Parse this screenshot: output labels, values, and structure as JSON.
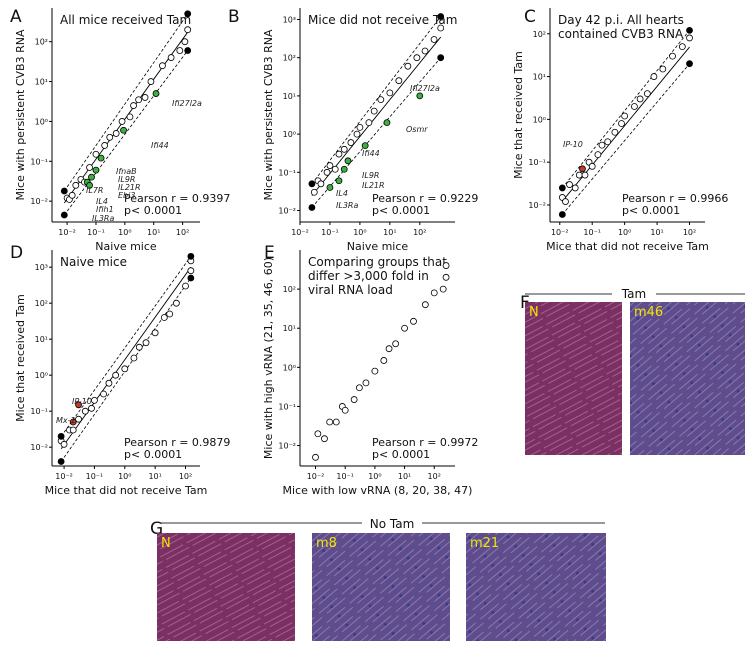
{
  "chart_data": [
    {
      "type": "scatter",
      "panel": "A",
      "title_lines": [
        "All mice received Tam"
      ],
      "xlabel": "Naive mice",
      "ylabel": "Mice with persistent CVB3 RNA",
      "xscale": "log",
      "yscale": "log",
      "xlim": [
        0.003,
        400
      ],
      "ylim": [
        0.003,
        700
      ],
      "xticks": [
        {
          "value": 0.01,
          "label": "10⁻²"
        },
        {
          "value": 0.1,
          "label": "10⁻¹"
        },
        {
          "value": 1,
          "label": "10⁰"
        },
        {
          "value": 10,
          "label": "10¹"
        },
        {
          "value": 100,
          "label": "10²"
        }
      ],
      "yticks": [
        {
          "value": 0.01,
          "label": "10⁻²"
        },
        {
          "value": 0.1,
          "label": "10⁻¹"
        },
        {
          "value": 1,
          "label": "10⁰"
        },
        {
          "value": 10,
          "label": "10¹"
        },
        {
          "value": 100,
          "label": "10²"
        }
      ],
      "series": [
        {
          "color": "#000000",
          "marker": "open",
          "x": [
            0.01,
            0.012,
            0.015,
            0.02,
            0.03,
            0.04,
            0.06,
            0.1,
            0.2,
            0.3,
            0.5,
            0.8,
            1.5,
            2,
            3,
            5,
            8,
            20,
            40,
            80,
            120,
            150
          ],
          "values": [
            0.012,
            0.011,
            0.014,
            0.025,
            0.035,
            0.03,
            0.07,
            0.15,
            0.25,
            0.4,
            0.5,
            1,
            1.3,
            2.5,
            3.5,
            4,
            10,
            25,
            40,
            60,
            100,
            200
          ]
        },
        {
          "color": "#000000",
          "marker": "filled",
          "x": [
            0.008,
            0.008,
            150,
            150
          ],
          "values": [
            0.018,
            0.0045,
            500,
            60
          ]
        },
        {
          "color": "#3cb043",
          "marker": "filled",
          "x": [
            12,
            0.9,
            0.15,
            0.1,
            0.07,
            0.05,
            0.06
          ],
          "values": [
            5,
            0.6,
            0.12,
            0.06,
            0.04,
            0.03,
            0.025
          ]
        }
      ],
      "annotations": [
        "Ifi27l2a",
        "Ifi44",
        "IfnaB",
        "IL9R",
        "IL21R",
        "Ebi3",
        "IL7R",
        "IL4",
        "Ifih1",
        "IL3Ra"
      ],
      "stats": [
        "Pearson r = 0.9397",
        "p< 0.0001"
      ]
    },
    {
      "type": "scatter",
      "panel": "B",
      "title_lines": [
        "Mice did not receive Tam"
      ],
      "xlabel": "Naive mice",
      "ylabel": "Mice with persistent CVB3 RNA",
      "xscale": "log",
      "yscale": "log",
      "xlim": [
        0.01,
        1500
      ],
      "ylim": [
        0.005,
        2000
      ],
      "xticks": [
        {
          "value": 0.01,
          "label": "10⁻²"
        },
        {
          "value": 0.1,
          "label": "10⁻¹"
        },
        {
          "value": 1,
          "label": "10⁰"
        },
        {
          "value": 10,
          "label": "10¹"
        },
        {
          "value": 100,
          "label": "10²"
        }
      ],
      "yticks": [
        {
          "value": 0.01,
          "label": "10⁻²"
        },
        {
          "value": 0.1,
          "label": "10⁻¹"
        },
        {
          "value": 1,
          "label": "10⁰"
        },
        {
          "value": 10,
          "label": "10¹"
        },
        {
          "value": 100,
          "label": "10²"
        },
        {
          "value": 1000,
          "label": "10³"
        }
      ],
      "series": [
        {
          "color": "#000000",
          "marker": "open",
          "x": [
            0.03,
            0.04,
            0.05,
            0.08,
            0.1,
            0.15,
            0.2,
            0.3,
            0.5,
            0.8,
            1,
            2,
            3,
            5,
            10,
            20,
            40,
            80,
            150,
            300,
            500
          ],
          "values": [
            0.03,
            0.06,
            0.05,
            0.1,
            0.15,
            0.12,
            0.3,
            0.4,
            0.6,
            1,
            1.5,
            2,
            4,
            8,
            12,
            25,
            60,
            100,
            150,
            300,
            600
          ]
        },
        {
          "color": "#000000",
          "marker": "filled",
          "x": [
            0.025,
            0.025,
            500,
            500
          ],
          "values": [
            0.05,
            0.012,
            1200,
            100
          ]
        },
        {
          "color": "#3cb043",
          "marker": "filled",
          "x": [
            100,
            8,
            1.5,
            0.4,
            0.3,
            0.2,
            0.1
          ],
          "values": [
            10,
            2,
            0.5,
            0.2,
            0.12,
            0.06,
            0.04
          ]
        }
      ],
      "annotations": [
        "Ifi27l2a",
        "Osmr",
        "Ifi44",
        "IL9R",
        "IL21R",
        "IL4",
        "IL3Ra"
      ],
      "stats": [
        "Pearson r = 0.9229",
        "p< 0.0001"
      ]
    },
    {
      "type": "scatter",
      "panel": "C",
      "title_lines": [
        "Day 42 p.i. All hearts",
        "contained CVB3 RNA"
      ],
      "xlabel": "Mice that did not receive Tam",
      "ylabel": "Mice that received Tam",
      "xscale": "log",
      "yscale": "log",
      "xlim": [
        0.005,
        300
      ],
      "ylim": [
        0.004,
        400
      ],
      "xticks": [
        {
          "value": 0.01,
          "label": "10⁻²"
        },
        {
          "value": 0.1,
          "label": "10⁻¹"
        },
        {
          "value": 1,
          "label": "10⁰"
        },
        {
          "value": 10,
          "label": "10¹"
        },
        {
          "value": 100,
          "label": "10²"
        }
      ],
      "yticks": [
        {
          "value": 0.01,
          "label": "10⁻²"
        },
        {
          "value": 0.1,
          "label": "10⁻¹"
        },
        {
          "value": 1,
          "label": "10⁰"
        },
        {
          "value": 10,
          "label": "10¹"
        },
        {
          "value": 100,
          "label": "10²"
        }
      ],
      "series": [
        {
          "color": "#000000",
          "marker": "open",
          "x": [
            0.012,
            0.015,
            0.02,
            0.03,
            0.04,
            0.06,
            0.08,
            0.1,
            0.15,
            0.2,
            0.3,
            0.5,
            0.8,
            1,
            2,
            3,
            5,
            8,
            15,
            30,
            60,
            100
          ],
          "values": [
            0.015,
            0.012,
            0.03,
            0.025,
            0.05,
            0.05,
            0.1,
            0.08,
            0.15,
            0.25,
            0.3,
            0.5,
            0.8,
            1.2,
            2,
            3,
            4,
            10,
            15,
            30,
            50,
            80
          ]
        },
        {
          "color": "#000000",
          "marker": "filled",
          "x": [
            0.012,
            0.012,
            100,
            100
          ],
          "values": [
            0.025,
            0.006,
            120,
            20
          ]
        },
        {
          "color": "#c0392b",
          "marker": "filled",
          "x": [
            0.05
          ],
          "values": [
            0.07
          ]
        }
      ],
      "annotations": [
        "IP-10"
      ],
      "stats": [
        "Pearson r = 0.9966",
        "p< 0.0001"
      ]
    },
    {
      "type": "scatter",
      "panel": "D",
      "title_lines": [
        "Naive mice"
      ],
      "xlabel": "Mice that did not receive Tam",
      "ylabel": "Mice that received Tam",
      "xscale": "log",
      "yscale": "log",
      "xlim": [
        0.004,
        300
      ],
      "ylim": [
        0.003,
        3000
      ],
      "xticks": [
        {
          "value": 0.01,
          "label": "10⁻²"
        },
        {
          "value": 0.1,
          "label": "10⁻¹"
        },
        {
          "value": 1,
          "label": "10⁰"
        },
        {
          "value": 10,
          "label": "10¹"
        },
        {
          "value": 100,
          "label": "10²"
        }
      ],
      "yticks": [
        {
          "value": 0.01,
          "label": "10⁻²"
        },
        {
          "value": 0.1,
          "label": "10⁻¹"
        },
        {
          "value": 1,
          "label": "10⁰"
        },
        {
          "value": 10,
          "label": "10¹"
        },
        {
          "value": 100,
          "label": "10²"
        },
        {
          "value": 1000,
          "label": "10³"
        }
      ],
      "series": [
        {
          "color": "#000000",
          "marker": "open",
          "x": [
            0.008,
            0.01,
            0.015,
            0.02,
            0.03,
            0.05,
            0.08,
            0.1,
            0.2,
            0.3,
            0.5,
            1,
            2,
            3,
            5,
            10,
            20,
            30,
            50,
            100,
            150,
            150
          ],
          "values": [
            0.015,
            0.012,
            0.03,
            0.03,
            0.06,
            0.1,
            0.12,
            0.2,
            0.3,
            0.6,
            1,
            1.5,
            3,
            6,
            8,
            15,
            40,
            50,
            100,
            300,
            800,
            1500
          ]
        },
        {
          "color": "#000000",
          "marker": "filled",
          "x": [
            0.008,
            0.008,
            150,
            150
          ],
          "values": [
            0.02,
            0.004,
            2000,
            500
          ]
        },
        {
          "color": "#c0392b",
          "marker": "filled",
          "x": [
            0.03,
            0.02
          ],
          "values": [
            0.15,
            0.05
          ]
        }
      ],
      "annotations": [
        "IP-10",
        "Mx-1"
      ],
      "stats": [
        "Pearson r = 0.9879",
        "p< 0.0001"
      ]
    },
    {
      "type": "scatter",
      "panel": "E",
      "title_lines": [
        "Comparing groups that",
        "differ >3,000 fold in",
        "viral RNA load"
      ],
      "xlabel": "Mice with low vRNA (8, 20, 38, 47)",
      "ylabel": "Mice with high vRNA (21, 35, 46, 60)",
      "xscale": "log",
      "yscale": "log",
      "xlim": [
        0.003,
        500
      ],
      "ylim": [
        0.003,
        1000
      ],
      "xticks": [
        {
          "value": 0.01,
          "label": "10⁻²"
        },
        {
          "value": 0.1,
          "label": "10⁻¹"
        },
        {
          "value": 1,
          "label": "10⁰"
        },
        {
          "value": 10,
          "label": "10¹"
        },
        {
          "value": 100,
          "label": "10²"
        }
      ],
      "yticks": [
        {
          "value": 0.01,
          "label": "10⁻²"
        },
        {
          "value": 0.1,
          "label": "10⁻¹"
        },
        {
          "value": 1,
          "label": "10⁰"
        },
        {
          "value": 10,
          "label": "10¹"
        },
        {
          "value": 100,
          "label": "10²"
        }
      ],
      "series": [
        {
          "color": "#000000",
          "marker": "open",
          "x": [
            0.01,
            0.012,
            0.02,
            0.03,
            0.05,
            0.08,
            0.1,
            0.2,
            0.3,
            0.5,
            1,
            2,
            3,
            5,
            10,
            20,
            50,
            100,
            200,
            250,
            250
          ],
          "values": [
            0.005,
            0.02,
            0.015,
            0.04,
            0.04,
            0.1,
            0.08,
            0.15,
            0.3,
            0.4,
            0.8,
            1.5,
            3,
            4,
            10,
            15,
            40,
            80,
            100,
            200,
            400
          ]
        }
      ],
      "annotations": [],
      "stats": [
        "Pearson r = 0.9972",
        "p< 0.0001"
      ]
    }
  ],
  "figure_panels": [
    {
      "panel": "F",
      "heading": "Tam",
      "images": [
        "N",
        "m46"
      ]
    },
    {
      "panel": "G",
      "heading": "No Tam",
      "images": [
        "N",
        "m8",
        "m21"
      ]
    }
  ]
}
